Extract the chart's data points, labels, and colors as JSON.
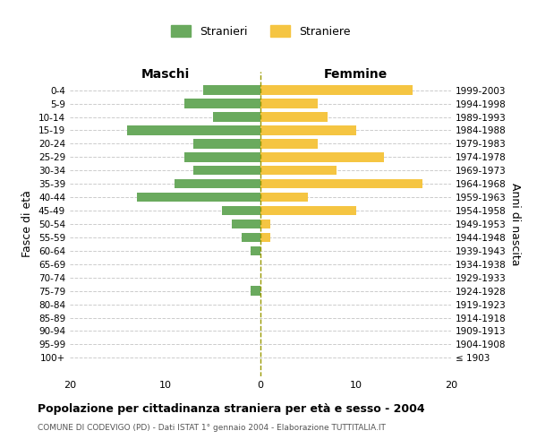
{
  "age_groups": [
    "0-4",
    "5-9",
    "10-14",
    "15-19",
    "20-24",
    "25-29",
    "30-34",
    "35-39",
    "40-44",
    "45-49",
    "50-54",
    "55-59",
    "60-64",
    "65-69",
    "70-74",
    "75-79",
    "80-84",
    "85-89",
    "90-94",
    "95-99",
    "100+"
  ],
  "birth_years": [
    "1999-2003",
    "1994-1998",
    "1989-1993",
    "1984-1988",
    "1979-1983",
    "1974-1978",
    "1969-1973",
    "1964-1968",
    "1959-1963",
    "1954-1958",
    "1949-1953",
    "1944-1948",
    "1939-1943",
    "1934-1938",
    "1929-1933",
    "1924-1928",
    "1919-1923",
    "1914-1918",
    "1909-1913",
    "1904-1908",
    "≤ 1903"
  ],
  "maschi": [
    6,
    8,
    5,
    14,
    7,
    8,
    7,
    9,
    13,
    4,
    3,
    2,
    1,
    0,
    0,
    1,
    0,
    0,
    0,
    0,
    0
  ],
  "femmine": [
    16,
    6,
    7,
    10,
    6,
    13,
    8,
    17,
    5,
    10,
    1,
    1,
    0,
    0,
    0,
    0,
    0,
    0,
    0,
    0,
    0
  ],
  "maschi_color": "#6aaa5e",
  "femmine_color": "#f5c542",
  "title": "Popolazione per cittadinanza straniera per età e sesso - 2004",
  "subtitle": "COMUNE DI CODEVIGO (PD) - Dati ISTAT 1° gennaio 2004 - Elaborazione TUTTITALIA.IT",
  "xlabel_left": "Maschi",
  "xlabel_right": "Femmine",
  "ylabel_left": "Fasce di età",
  "ylabel_right": "Anni di nascita",
  "xlim": 20,
  "legend_stranieri": "Stranieri",
  "legend_straniere": "Straniere",
  "bg_color": "#ffffff",
  "grid_color": "#cccccc"
}
